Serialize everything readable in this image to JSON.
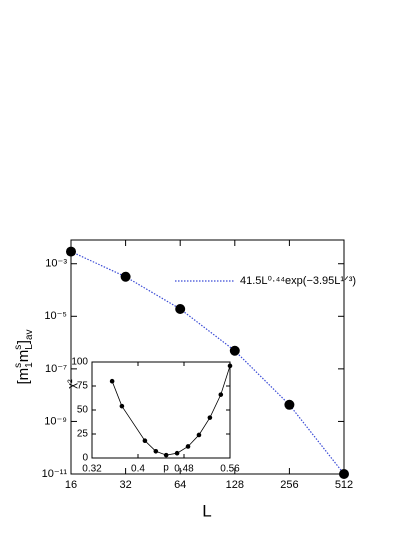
{
  "chart_data": [
    {
      "type": "scatter",
      "x": [
        16,
        32,
        64,
        128,
        256,
        512
      ],
      "xscale": "log",
      "yscale": "log",
      "xlim": [
        16,
        512
      ],
      "xticks": [
        16,
        32,
        64,
        128,
        256,
        512
      ],
      "ylim": [
        1e-11,
        0.008
      ],
      "yticks": [
        {
          "value": 0.001,
          "label": "10⁻³"
        },
        {
          "value": 1e-05,
          "label": "10⁻⁵"
        },
        {
          "value": 1e-07,
          "label": "10⁻⁷"
        },
        {
          "value": 1e-09,
          "label": "10⁻⁹"
        },
        {
          "value": 1e-11,
          "label": "10⁻¹¹"
        }
      ],
      "xlabel": "L",
      "ylabel": [
        "[m",
        "s",
        "1",
        "m",
        "s",
        "L",
        "]",
        "av"
      ],
      "points": {
        "color": "#000000",
        "values": [
          0.0029,
          0.00032,
          1.9e-05,
          4.9e-07,
          4.3e-09,
          1e-11
        ]
      },
      "fit": {
        "name": "41.5L⁰·⁴⁴exp(−3.95L¹ᐟ³)",
        "color": "#3a4bd6",
        "values": [
          0.0029,
          0.00032,
          1.9e-05,
          4.9e-07,
          4.3e-09,
          1e-11
        ]
      }
    },
    {
      "type": "line",
      "x": [
        0.355,
        0.372,
        0.412,
        0.431,
        0.449,
        0.468,
        0.487,
        0.506,
        0.525,
        0.544,
        0.56
      ],
      "values": [
        80,
        54,
        18,
        7,
        3,
        5,
        12,
        24,
        42,
        66,
        96
      ],
      "color": "#000000",
      "xlim": [
        0.32,
        0.56
      ],
      "xticks": [
        0.32,
        0.4,
        0.48,
        0.56
      ],
      "ylim": [
        0,
        100
      ],
      "yticks": [
        0,
        25,
        50,
        75,
        100
      ],
      "xlabel": "p",
      "ylabel": "χ²"
    }
  ]
}
